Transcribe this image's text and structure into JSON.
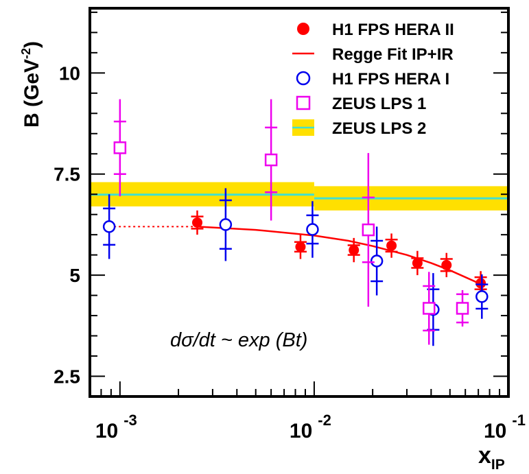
{
  "chart_data": {
    "type": "scatter",
    "ylabel": "B (GeV",
    "ylabel_exponent": "-2",
    "ylabel_close": ")",
    "xlabel": "x",
    "xlabel_subscript": "IP",
    "x_scale": "log",
    "xlim": [
      0.0007,
      0.1
    ],
    "ylim": [
      2.0,
      11.6
    ],
    "y_ticks": [
      {
        "value": 2.5,
        "label": "2.5"
      },
      {
        "value": 5,
        "label": "5"
      },
      {
        "value": 7.5,
        "label": "7.5"
      },
      {
        "value": 10,
        "label": "10"
      }
    ],
    "x_ticks": [
      {
        "value": 0.001,
        "base": "10",
        "exponent": "-3"
      },
      {
        "value": 0.01,
        "base": "10",
        "exponent": "-2"
      },
      {
        "value": 0.1,
        "base": "10",
        "exponent": "-1"
      }
    ],
    "annotation": "dσ/dt ~ exp (Bt)",
    "legend_position": "top-right",
    "legend": [
      {
        "label": "H1 FPS HERA II",
        "marker": "filled-circle",
        "color": "#ff0000"
      },
      {
        "label": "Regge Fit IP+IR",
        "marker": "line",
        "color": "#ff0000"
      },
      {
        "label": "H1 FPS HERA I",
        "marker": "open-circle",
        "color": "#0000ee"
      },
      {
        "label": "ZEUS LPS 1",
        "marker": "open-square",
        "color": "#ee00ee"
      },
      {
        "label": "ZEUS LPS 2",
        "marker": "band",
        "color": "#ffe000",
        "line_color": "#40e0d0"
      }
    ],
    "series": [
      {
        "name": "H1 FPS HERA II",
        "marker": "filled-circle",
        "color": "#ff0000",
        "points": [
          {
            "x": 0.0025,
            "y": 6.3,
            "stat_err": 0.15,
            "tot_err": 0.3
          },
          {
            "x": 0.0085,
            "y": 5.7,
            "stat_err": 0.12,
            "tot_err": 0.3
          },
          {
            "x": 0.016,
            "y": 5.62,
            "stat_err": 0.12,
            "tot_err": 0.3
          },
          {
            "x": 0.025,
            "y": 5.73,
            "stat_err": 0.15,
            "tot_err": 0.3
          },
          {
            "x": 0.034,
            "y": 5.3,
            "stat_err": 0.12,
            "tot_err": 0.3
          },
          {
            "x": 0.048,
            "y": 5.25,
            "stat_err": 0.15,
            "tot_err": 0.3
          },
          {
            "x": 0.072,
            "y": 4.8,
            "stat_err": 0.15,
            "tot_err": 0.3
          }
        ]
      },
      {
        "name": "H1 FPS HERA I",
        "marker": "open-circle",
        "color": "#0000ee",
        "points": [
          {
            "x": 0.00088,
            "y": 6.2,
            "stat_err": 0.45,
            "tot_err": 0.8
          },
          {
            "x": 0.0035,
            "y": 6.25,
            "stat_err": 0.6,
            "tot_err": 0.9
          },
          {
            "x": 0.0098,
            "y": 6.13,
            "stat_err": 0.35,
            "tot_err": 0.7
          },
          {
            "x": 0.021,
            "y": 5.35,
            "stat_err": 0.5,
            "tot_err": 0.85
          },
          {
            "x": 0.041,
            "y": 4.15,
            "stat_err": 0.5,
            "tot_err": 0.9
          },
          {
            "x": 0.073,
            "y": 4.47,
            "stat_err": 0.3,
            "tot_err": 0.55
          }
        ]
      },
      {
        "name": "ZEUS LPS 1",
        "marker": "open-square",
        "color": "#ee00ee",
        "points": [
          {
            "x": 0.001,
            "y": 8.15,
            "stat_err": 0.65,
            "tot_err": 1.2
          },
          {
            "x": 0.006,
            "y": 7.85,
            "stat_err": 0.8,
            "tot_err": 1.5
          },
          {
            "x": 0.019,
            "y": 6.12,
            "stat_err": 0.8,
            "tot_err": 1.9
          },
          {
            "x": 0.039,
            "y": 4.18,
            "stat_err": 0.55,
            "tot_err": 0.9
          },
          {
            "x": 0.058,
            "y": 4.18,
            "stat_err": 0.35,
            "tot_err": 0.45
          }
        ]
      }
    ],
    "bands": [
      {
        "name": "ZEUS LPS 2",
        "x_range": [
          0.0007,
          0.01
        ],
        "y": 6.99,
        "low": 6.7,
        "high": 7.3,
        "fill": "#ffe000",
        "line_color": "#40e0d0"
      },
      {
        "name": "ZEUS LPS 2",
        "x_range": [
          0.01,
          0.1
        ],
        "y": 6.9,
        "low": 6.6,
        "high": 7.2,
        "fill": "#ffe000",
        "line_color": "#40e0d0"
      }
    ],
    "fit": {
      "name": "Regge Fit IP+IR",
      "color": "#ff0000",
      "dotted_points": [
        {
          "x": 0.00088,
          "y": 6.2
        },
        {
          "x": 0.0025,
          "y": 6.2
        }
      ],
      "solid_points": [
        {
          "x": 0.0025,
          "y": 6.2
        },
        {
          "x": 0.005,
          "y": 6.12
        },
        {
          "x": 0.01,
          "y": 5.98
        },
        {
          "x": 0.015,
          "y": 5.85
        },
        {
          "x": 0.02,
          "y": 5.72
        },
        {
          "x": 0.03,
          "y": 5.5
        },
        {
          "x": 0.04,
          "y": 5.3
        },
        {
          "x": 0.05,
          "y": 5.12
        },
        {
          "x": 0.06,
          "y": 4.95
        },
        {
          "x": 0.072,
          "y": 4.78
        }
      ]
    }
  }
}
